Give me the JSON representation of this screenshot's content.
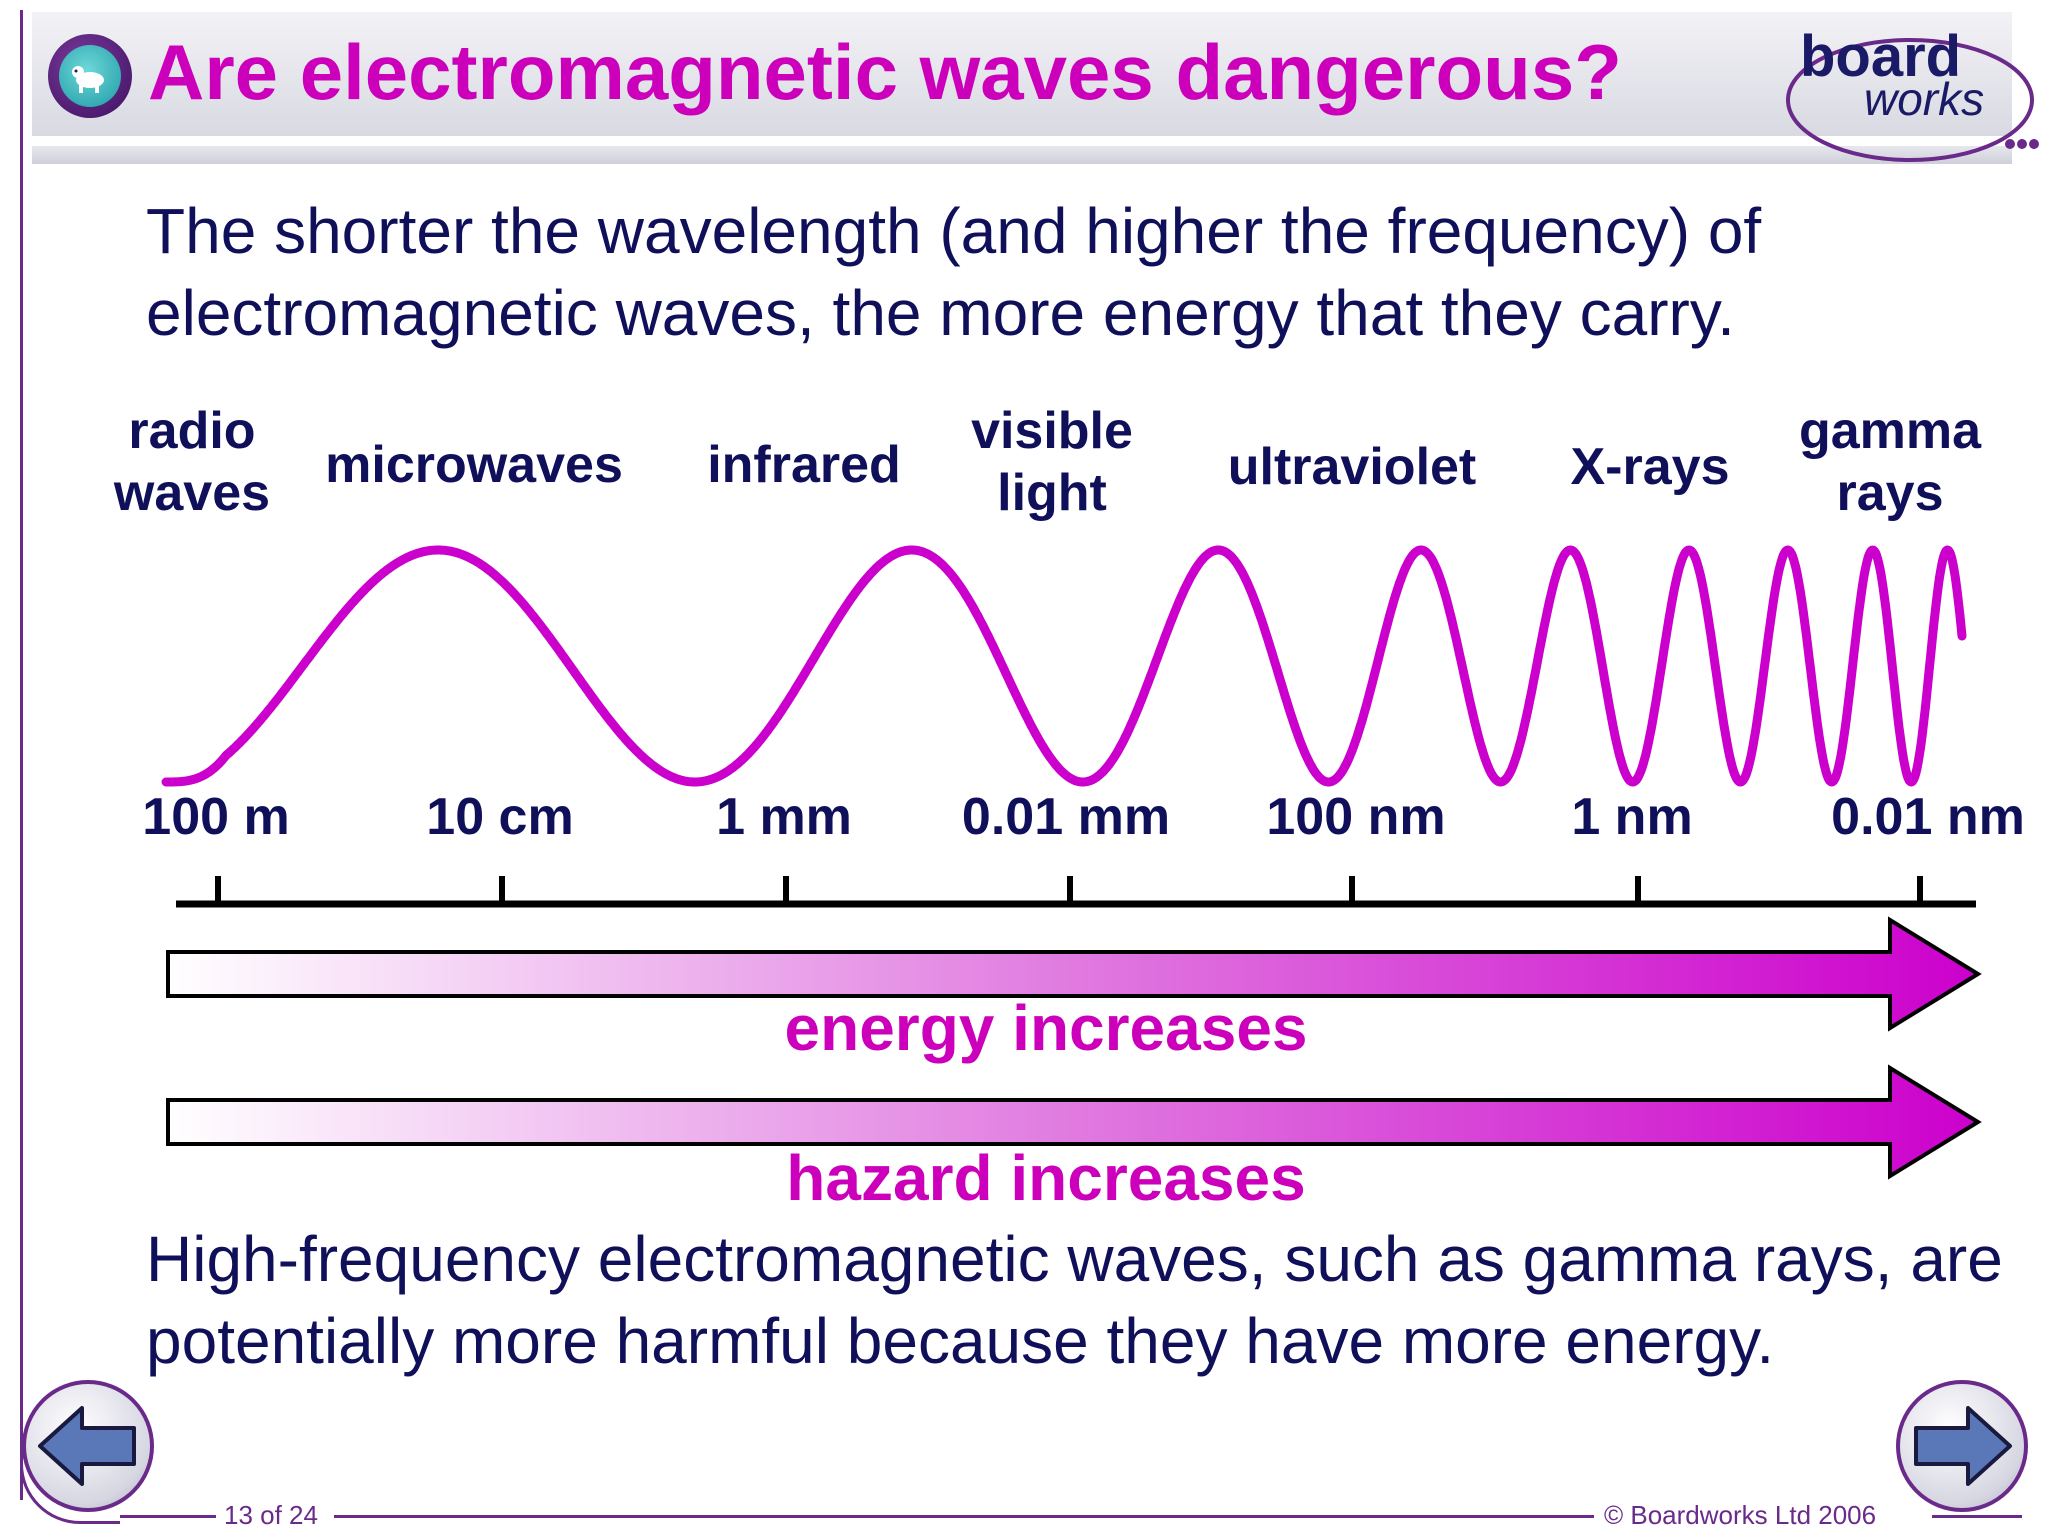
{
  "header": {
    "title": "Are electromagnetic waves dangerous?",
    "logo_line1": "board",
    "logo_line2": "works"
  },
  "intro_text": "The shorter the wavelength (and higher the frequency) of electromagnetic waves, the more energy that they carry.",
  "spectrum": {
    "bands": [
      {
        "line1": "radio",
        "line2": "waves"
      },
      {
        "line1": "microwaves",
        "line2": ""
      },
      {
        "line1": "infrared",
        "line2": ""
      },
      {
        "line1": "visible",
        "line2": "light"
      },
      {
        "line1": "ultraviolet",
        "line2": ""
      },
      {
        "line1": "X-rays",
        "line2": ""
      },
      {
        "line1": "gamma",
        "line2": "rays"
      }
    ],
    "wavelengths": [
      "100 m",
      "10 cm",
      "1 mm",
      "0.01 mm",
      "100 nm",
      "1 nm",
      "0.01 nm"
    ]
  },
  "arrows": {
    "energy_label": "energy increases",
    "hazard_label": "hazard increases"
  },
  "outro_text": "High-frequency electromagnetic waves, such as gamma rays, are potentially more harmful because they have more energy.",
  "footer": {
    "page_indicator": "13 of 24",
    "copyright": "© Boardworks Ltd 2006"
  },
  "colors": {
    "accent": "#cc00bb",
    "text": "#10105a",
    "frame": "#6a2a8a",
    "nav_arrow": "#5a78b8"
  },
  "icons": {
    "title_icon": "cartoon-tv-icon",
    "prev": "arrow-left-icon",
    "next": "arrow-right-icon"
  }
}
